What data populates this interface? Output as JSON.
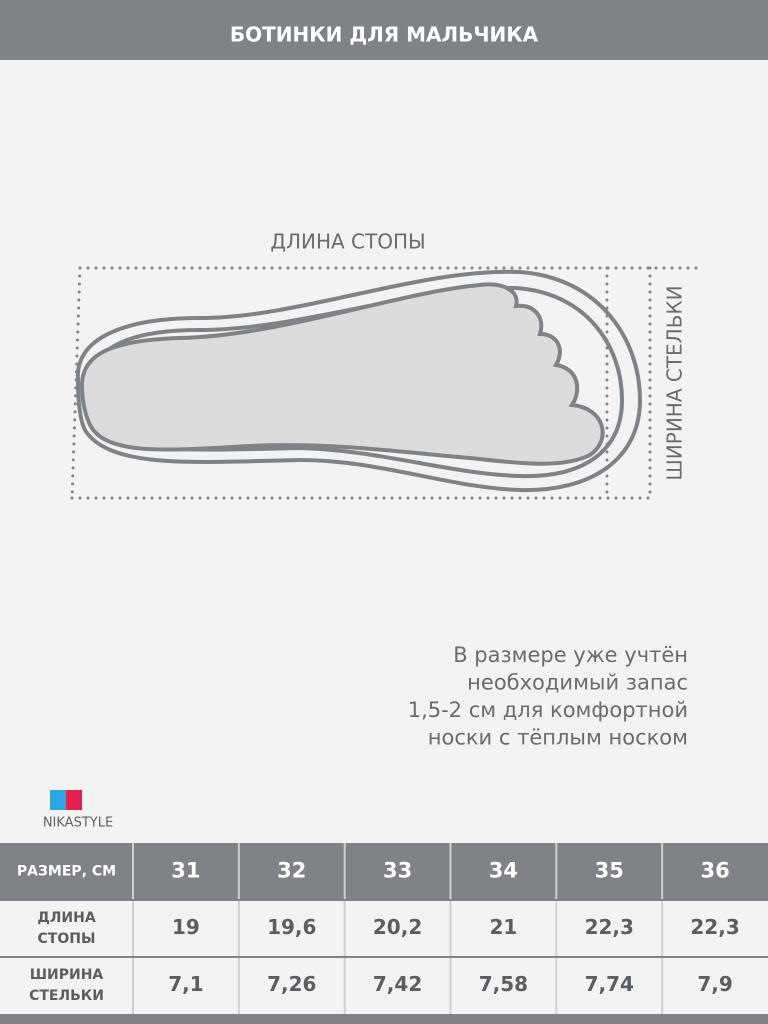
{
  "header": {
    "title": "БОТИНКИ ДЛЯ МАЛЬЧИКА"
  },
  "diagram": {
    "length_label": "ДЛИНА СТОПЫ",
    "width_label": "ШИРИНА СТЕЛЬКИ"
  },
  "note": {
    "lines": [
      "В размере уже учтён",
      "необходимый запас",
      "1,5-2 см для комфортной",
      "носки с тёплым носком"
    ]
  },
  "brand": {
    "name": "NIKASTYLE"
  },
  "table": {
    "header": [
      "РАЗМЕР, СМ",
      "31",
      "32",
      "33",
      "34",
      "35",
      "36"
    ],
    "rows": [
      {
        "label": [
          "ДЛИНА",
          "СТОПЫ"
        ],
        "values": [
          "19",
          "19,6",
          "20,2",
          "21",
          "22,3",
          "22,3"
        ]
      },
      {
        "label": [
          "ШИРИНА",
          "СТЕЛЬКИ"
        ],
        "values": [
          "7,1",
          "7,26",
          "7,42",
          "7,58",
          "7,74",
          "7,9"
        ]
      }
    ]
  }
}
